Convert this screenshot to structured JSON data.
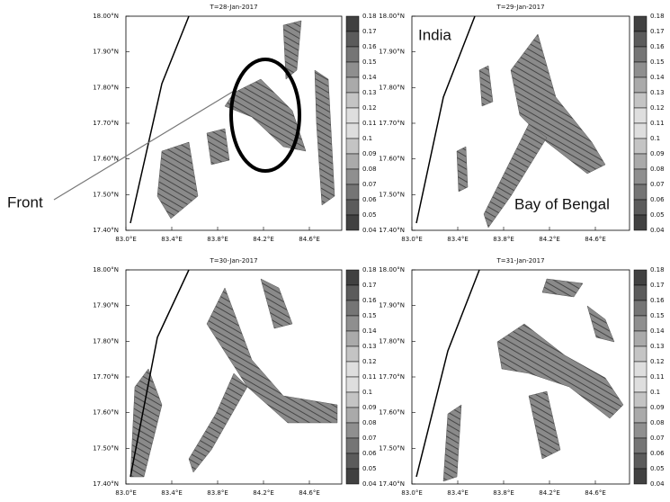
{
  "panels": [
    {
      "title": "T=28-Jan-2017"
    },
    {
      "title": "T=29-Jan-2017"
    },
    {
      "title": "T=30-Jan-2017"
    },
    {
      "title": "T=31-Jan-2017"
    }
  ],
  "y_ticks": [
    "18.00°N",
    "17.90°N",
    "17.80°N",
    "17.70°N",
    "17.60°N",
    "17.50°N",
    "17.40°N"
  ],
  "x_ticks": [
    "83.0°E",
    "83.4°E",
    "83.8°E",
    "84.2°E",
    "84.6°E"
  ],
  "colorbar": [
    0.18,
    0.17,
    0.16,
    0.15,
    0.14,
    0.13,
    0.12,
    0.11,
    0.1,
    0.09,
    0.08,
    0.07,
    0.06,
    0.05,
    0.04
  ],
  "annotations": {
    "front": "Front",
    "india": "India",
    "bay": "Bay of Bengal"
  }
}
